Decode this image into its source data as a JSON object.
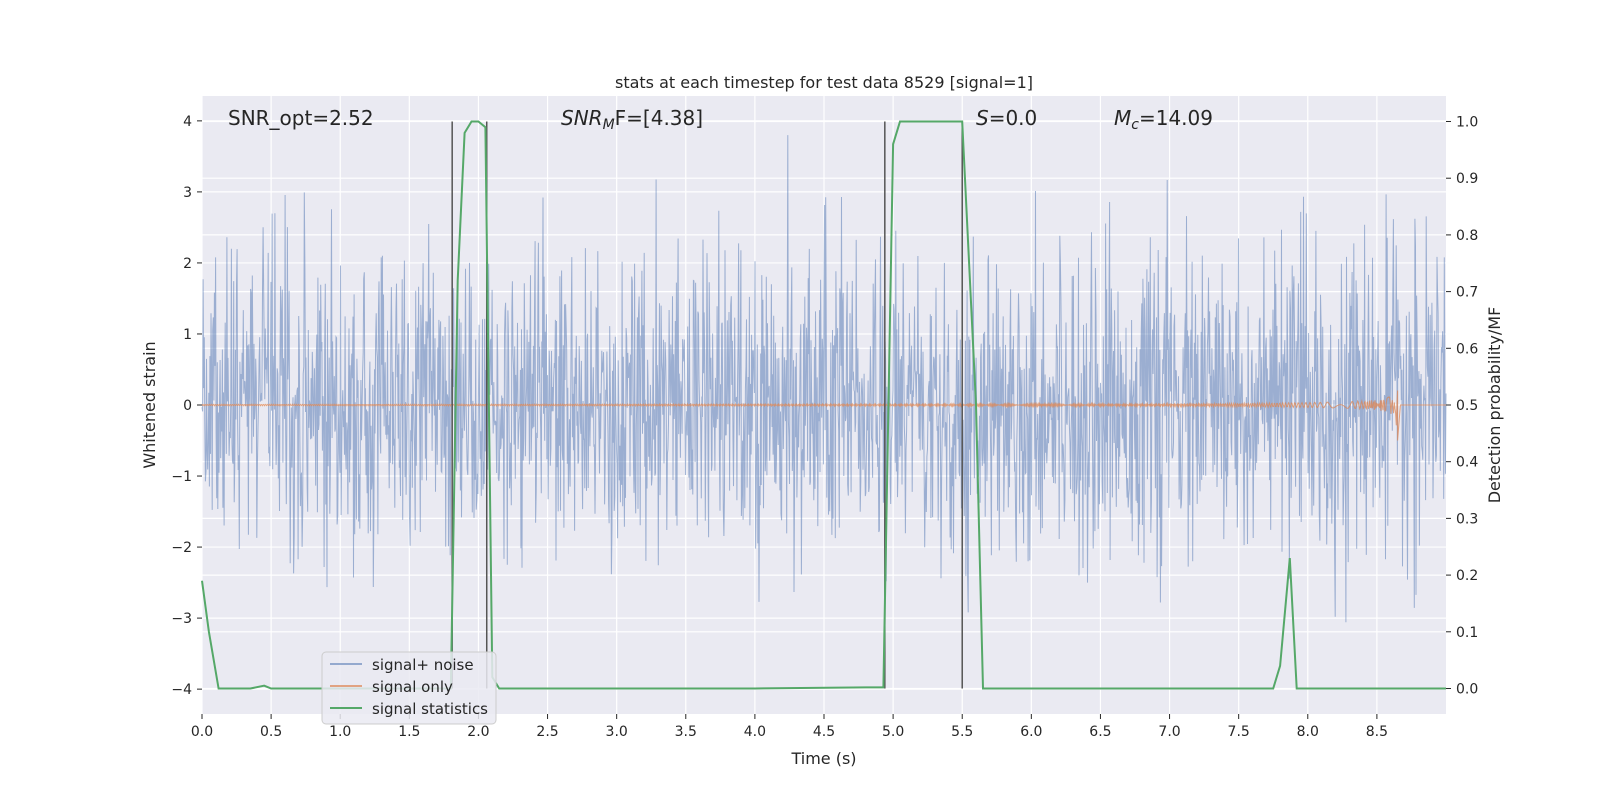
{
  "chart_data": {
    "type": "line",
    "title": "stats at each timestep for test data 8529 [signal=1]",
    "xlabel": "Time (s)",
    "ylabel": "Whitened strain",
    "ylabel_right": "Detection probability/MF",
    "xlim": [
      0.0,
      9.0
    ],
    "ylim": [
      -4.35,
      4.35
    ],
    "ylim_right": [
      -0.045,
      1.045
    ],
    "x_ticks": [
      "0.0",
      "0.5",
      "1.0",
      "1.5",
      "2.0",
      "2.5",
      "3.0",
      "3.5",
      "4.0",
      "4.5",
      "5.0",
      "5.5",
      "6.0",
      "6.5",
      "7.0",
      "7.5",
      "8.0",
      "8.5"
    ],
    "y_ticks": [
      "4",
      "3",
      "2",
      "1",
      "0",
      "−1",
      "−2",
      "−3",
      "−4"
    ],
    "y_right_ticks": [
      "1.0",
      "0.9",
      "0.8",
      "0.7",
      "0.6",
      "0.5",
      "0.4",
      "0.3",
      "0.2",
      "0.1",
      "0.0"
    ],
    "grid": true,
    "legend_placement": "lower-left",
    "annotations": {
      "snr_opt": "SNR_opt=2.52",
      "snr_mf_main": "SNR",
      "snr_mf_sub": "M",
      "snr_mf_tail": "F=[4.38]",
      "s_label": "S",
      "s_tail": "=0.0",
      "mc_main": "M",
      "mc_sub": "c",
      "mc_tail": "=14.09"
    },
    "series": [
      {
        "name": "signal+ noise",
        "color": "#4c72b0",
        "envelope_sigma": 1.0,
        "approx_peak": 3.6
      },
      {
        "name": "signal only",
        "color": "#dd8452",
        "chirp_peak_time": 8.65,
        "chirp_peak_amplitude": 0.45
      },
      {
        "name": "signal statistics",
        "color": "#55a868",
        "x": [
          0.0,
          0.05,
          0.12,
          0.2,
          0.3,
          0.35,
          0.45,
          0.5,
          1.0,
          1.5,
          1.8,
          1.85,
          1.9,
          1.95,
          2.0,
          2.05,
          2.1,
          2.15,
          2.2,
          2.5,
          3.0,
          4.0,
          4.8,
          4.93,
          5.0,
          5.05,
          5.5,
          5.6,
          5.65,
          6.0,
          7.0,
          7.75,
          7.8,
          7.87,
          7.92,
          8.0,
          8.5,
          9.0
        ],
        "values": [
          0.19,
          0.1,
          0.0,
          0.0,
          0.0,
          0.0,
          0.005,
          0.0,
          0.0,
          0.0,
          0.0,
          0.72,
          0.98,
          1.0,
          1.0,
          0.99,
          0.02,
          0.0,
          0.0,
          0.0,
          0.0,
          0.0,
          0.002,
          0.002,
          0.96,
          1.0,
          1.0,
          0.5,
          0.0,
          0.0,
          0.0,
          0.0,
          0.04,
          0.23,
          0.0,
          0.0,
          0.0,
          0.0
        ]
      }
    ],
    "vertical_lines": [
      1.81,
      2.06,
      4.94,
      5.5
    ]
  }
}
